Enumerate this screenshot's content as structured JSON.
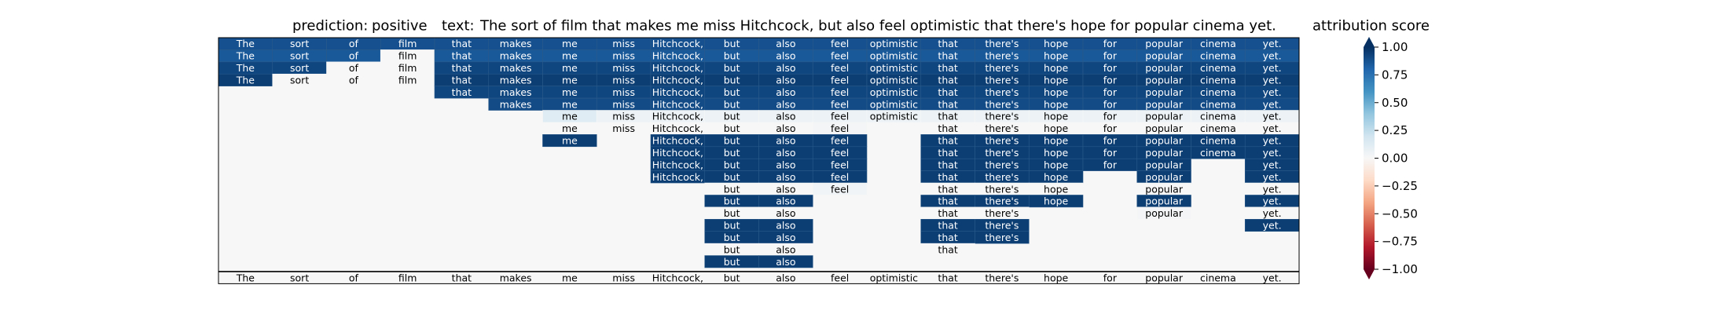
{
  "header": {
    "prediction_label": "prediction:",
    "prediction_value": "positive",
    "text_label": "text:",
    "text_value": "The sort of film that makes me miss Hitchcock, but also feel optimistic that there's hope for popular cinema yet."
  },
  "colorbar": {
    "title": "attribution score",
    "ticks": [
      "1.00",
      "0.75",
      "0.50",
      "0.25",
      "0.00",
      "−0.25",
      "−0.50",
      "−0.75",
      "−1.00"
    ],
    "tick_values": [
      1.0,
      0.75,
      0.5,
      0.25,
      0.0,
      -0.25,
      -0.5,
      -0.75,
      -1.0
    ],
    "vmin": -1.0,
    "vmax": 1.0,
    "colors": [
      "#67001f",
      "#b2182b",
      "#d6604d",
      "#f4a582",
      "#fddbc7",
      "#f7f7f7",
      "#d1e5f0",
      "#92c5de",
      "#4393c3",
      "#2166ac",
      "#053061"
    ]
  },
  "chart_data": {
    "type": "heatmap",
    "title": "",
    "xlabel": "",
    "ylabel": "",
    "tokens": [
      "The",
      "sort",
      "of",
      "film",
      "that",
      "makes",
      "me",
      "miss",
      "Hitchcock,",
      "but",
      "also",
      "feel",
      "optimistic",
      "that",
      "there's",
      "hope",
      "for",
      "popular",
      "cinema",
      "yet."
    ],
    "rows": [
      {
        "start": 0,
        "scores": [
          0.88,
          0.88,
          0.88,
          0.88,
          0.88,
          0.88,
          0.88,
          0.88,
          0.88,
          0.88,
          0.88,
          0.88,
          0.88,
          0.88,
          0.88,
          0.88,
          0.88,
          0.88,
          0.88,
          0.88
        ]
      },
      {
        "start": 0,
        "scores": [
          0.85,
          0.85,
          0.85,
          0,
          0.85,
          0.85,
          0.85,
          0.85,
          0.85,
          0.85,
          0.85,
          0.85,
          0.85,
          0.85,
          0.85,
          0.85,
          0.85,
          0.85,
          0.85,
          0.85
        ]
      },
      {
        "start": 0,
        "scores": [
          0.92,
          0.92,
          0,
          0,
          0.92,
          0.92,
          0.92,
          0.92,
          0.92,
          0.92,
          0.92,
          0.92,
          0.92,
          0.92,
          0.92,
          0.92,
          0.92,
          0.92,
          0.92,
          0.92
        ]
      },
      {
        "start": 0,
        "scores": [
          0.95,
          0,
          0,
          0,
          0.95,
          0.95,
          0.95,
          0.95,
          0.95,
          0.95,
          0.95,
          0.95,
          0.95,
          0.95,
          0.95,
          0.95,
          0.95,
          0.95,
          0.95,
          0.95
        ]
      },
      {
        "start": 4,
        "scores": [
          0.92,
          0.92,
          0.92,
          0.92,
          0.92,
          0.92,
          0.92,
          0.92,
          0.92,
          0.92,
          0.92,
          0.92,
          0.92,
          0.92,
          0.92,
          0.92
        ]
      },
      {
        "start": 5,
        "scores": [
          0.9,
          0.9,
          0.9,
          0.9,
          0.9,
          0.9,
          0.9,
          0.9,
          0.9,
          0.9,
          0.9,
          0.9,
          0.9,
          0.9,
          0.9
        ]
      },
      {
        "start": 6,
        "scores": [
          0.12,
          0.06,
          0.06,
          0.06,
          0.06,
          0.06,
          0.06,
          0.06,
          0.06,
          0.06,
          0.06,
          0.06,
          0.06,
          0.06
        ]
      },
      {
        "start": 6,
        "scores": [
          0,
          0,
          0,
          0,
          0,
          0.02,
          null,
          0,
          0,
          0,
          0,
          0,
          0,
          0
        ]
      },
      {
        "start": 6,
        "scores": [
          0.95,
          null,
          0.95,
          0.95,
          0.95,
          0.95,
          null,
          0.95,
          0.95,
          0.95,
          0.95,
          0.95,
          0.95,
          0.95
        ]
      },
      {
        "start": 8,
        "scores": [
          0.95,
          0.95,
          0.95,
          0.95,
          null,
          0.95,
          0.95,
          0.95,
          0.95,
          0.95,
          0.95,
          0.95
        ]
      },
      {
        "start": 8,
        "scores": [
          0.95,
          0.95,
          0.95,
          0.95,
          null,
          0.95,
          0.95,
          0.95,
          0.95,
          0.95,
          null,
          0.95
        ]
      },
      {
        "start": 8,
        "scores": [
          0.95,
          0.95,
          0.95,
          0.95,
          null,
          0.95,
          0.95,
          0.95,
          null,
          0.95,
          null,
          0.95
        ]
      },
      {
        "start": 9,
        "scores": [
          0,
          0,
          0.03,
          null,
          0,
          0,
          0,
          null,
          0,
          null,
          0
        ]
      },
      {
        "start": 9,
        "scores": [
          0.95,
          0.95,
          null,
          null,
          0.95,
          0.95,
          0.95,
          null,
          0.95,
          null,
          0.95
        ]
      },
      {
        "start": 9,
        "scores": [
          0,
          0,
          null,
          null,
          0,
          0,
          null,
          null,
          0.02,
          null,
          0
        ]
      },
      {
        "start": 9,
        "scores": [
          0.95,
          0.95,
          null,
          null,
          0.95,
          0.95,
          null,
          null,
          null,
          null,
          0.95
        ]
      },
      {
        "start": 9,
        "scores": [
          0.95,
          0.95,
          null,
          null,
          0.95,
          0.95
        ]
      },
      {
        "start": 9,
        "scores": [
          0,
          0,
          null,
          null,
          0
        ]
      },
      {
        "start": 9,
        "scores": [
          0.95,
          0.95
        ]
      }
    ],
    "footer_row": [
      "The",
      "sort",
      "of",
      "film",
      "that",
      "makes",
      "me",
      "miss",
      "Hitchcock,",
      "but",
      "also",
      "feel",
      "optimistic",
      "that",
      "there's",
      "hope",
      "for",
      "popular",
      "cinema",
      "yet."
    ]
  }
}
